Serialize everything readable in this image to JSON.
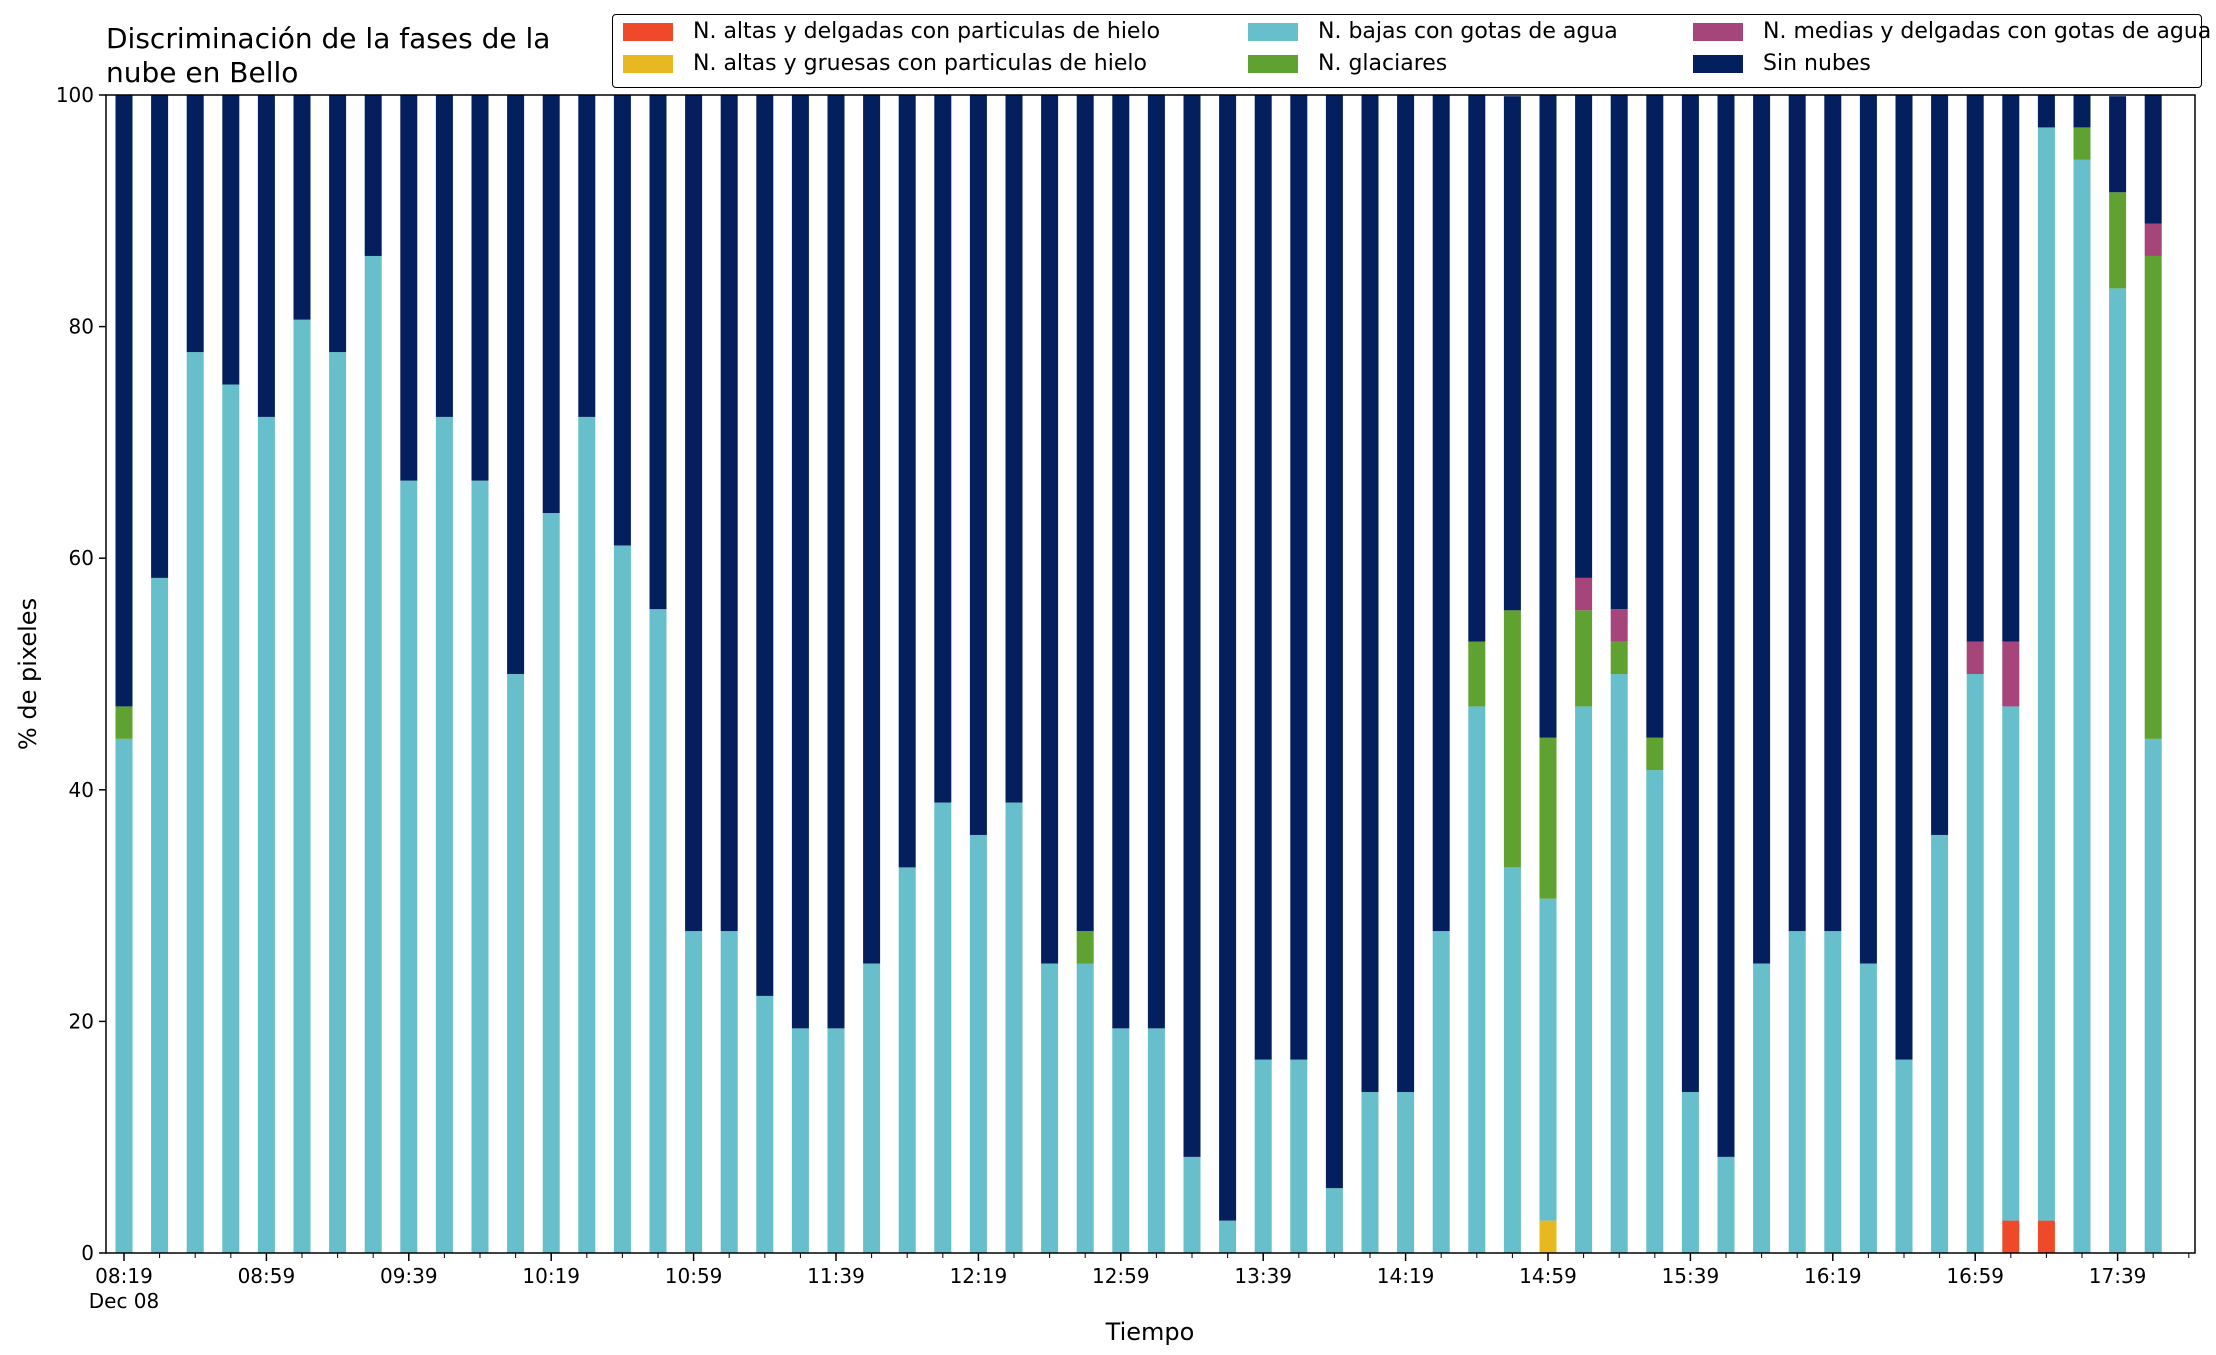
{
  "chart_data": {
    "type": "bar",
    "stacked": true,
    "title": "Discriminación de la fases de la\nnube en Bello",
    "xlabel": "Tiempo",
    "ylabel": "% de pixeles",
    "ylim": [
      0,
      100
    ],
    "yticks": [
      0,
      20,
      40,
      60,
      80,
      100
    ],
    "grid": false,
    "legend_position": "top-right",
    "first_tick_sublabel": "Dec 08",
    "x_tick_labels": [
      {
        "index": 0,
        "label": "08:19"
      },
      {
        "index": 4,
        "label": "08:59"
      },
      {
        "index": 8,
        "label": "09:39"
      },
      {
        "index": 12,
        "label": "10:19"
      },
      {
        "index": 16,
        "label": "10:59"
      },
      {
        "index": 20,
        "label": "11:39"
      },
      {
        "index": 24,
        "label": "12:19"
      },
      {
        "index": 28,
        "label": "12:59"
      },
      {
        "index": 32,
        "label": "13:39"
      },
      {
        "index": 36,
        "label": "14:19"
      },
      {
        "index": 40,
        "label": "14:59"
      },
      {
        "index": 44,
        "label": "15:39"
      },
      {
        "index": 48,
        "label": "16:19"
      },
      {
        "index": 52,
        "label": "16:59"
      },
      {
        "index": 56,
        "label": "17:39"
      }
    ],
    "categories": [
      "08:19",
      "08:29",
      "08:39",
      "08:49",
      "08:59",
      "09:09",
      "09:19",
      "09:29",
      "09:39",
      "09:49",
      "09:59",
      "10:09",
      "10:19",
      "10:29",
      "10:39",
      "10:49",
      "10:59",
      "11:09",
      "11:19",
      "11:29",
      "11:39",
      "11:49",
      "11:59",
      "12:09",
      "12:19",
      "12:29",
      "12:39",
      "12:49",
      "12:59",
      "13:09",
      "13:19",
      "13:29",
      "13:39",
      "13:49",
      "13:59",
      "14:09",
      "14:19",
      "14:29",
      "14:39",
      "14:49",
      "14:59",
      "15:09",
      "15:19",
      "15:29",
      "15:39",
      "15:49",
      "15:59",
      "16:09",
      "16:19",
      "16:29",
      "16:39",
      "16:49",
      "16:59",
      "17:09",
      "17:19",
      "17:29",
      "17:39",
      "17:49"
    ],
    "series": [
      {
        "name": "N. altas y delgadas con particulas de hielo",
        "color": "#ee4a2a",
        "values": [
          0,
          0,
          0,
          0,
          0,
          0,
          0,
          0,
          0,
          0,
          0,
          0,
          0,
          0,
          0,
          0,
          0,
          0,
          0,
          0,
          0,
          0,
          0,
          0,
          0,
          0,
          0,
          0,
          0,
          0,
          0,
          0,
          0,
          0,
          0,
          0,
          0,
          0,
          0,
          0,
          0,
          0,
          0,
          0,
          0,
          0,
          0,
          0,
          0,
          0,
          0,
          0,
          0,
          2.8,
          2.8,
          0,
          0,
          0
        ]
      },
      {
        "name": "N. altas y gruesas con particulas de hielo",
        "color": "#e8b820",
        "values": [
          0,
          0,
          0,
          0,
          0,
          0,
          0,
          0,
          0,
          0,
          0,
          0,
          0,
          0,
          0,
          0,
          0,
          0,
          0,
          0,
          0,
          0,
          0,
          0,
          0,
          0,
          0,
          0,
          0,
          0,
          0,
          0,
          0,
          0,
          0,
          0,
          0,
          0,
          0,
          0,
          2.8,
          0,
          0,
          0,
          0,
          0,
          0,
          0,
          0,
          0,
          0,
          0,
          0,
          0,
          0,
          0,
          0,
          0
        ]
      },
      {
        "name": "N. bajas con gotas de agua",
        "color": "#66bfca",
        "values": [
          44.4,
          58.3,
          77.8,
          75.0,
          72.2,
          80.6,
          77.8,
          86.1,
          66.7,
          72.2,
          66.7,
          50.0,
          63.9,
          72.2,
          61.1,
          55.6,
          27.8,
          27.8,
          22.2,
          19.4,
          19.4,
          25.0,
          33.3,
          38.9,
          36.1,
          38.9,
          25.0,
          25.0,
          19.4,
          19.4,
          8.3,
          2.8,
          16.7,
          16.7,
          5.6,
          13.9,
          13.9,
          27.8,
          47.2,
          33.3,
          27.8,
          47.2,
          50.0,
          41.7,
          13.9,
          8.3,
          25.0,
          27.8,
          27.8,
          25.0,
          16.7,
          36.1,
          50.0,
          44.4,
          94.4,
          94.4,
          83.3,
          44.4
        ]
      },
      {
        "name": "N. glaciares",
        "color": "#60a231",
        "values": [
          2.8,
          0,
          0,
          0,
          0,
          0,
          0,
          0,
          0,
          0,
          0,
          0,
          0,
          0,
          0,
          0,
          0,
          0,
          0,
          0,
          0,
          0,
          0,
          0,
          0,
          0,
          0,
          2.8,
          0,
          0,
          0,
          0,
          0,
          0,
          0,
          0,
          0,
          0,
          5.6,
          22.2,
          13.9,
          8.3,
          2.8,
          2.8,
          0,
          0,
          0,
          0,
          0,
          0,
          0,
          0,
          0,
          0,
          0,
          2.8,
          8.3,
          41.7
        ]
      },
      {
        "name": "N. medias y delgadas con gotas de agua",
        "color": "#a5457a",
        "values": [
          0,
          0,
          0,
          0,
          0,
          0,
          0,
          0,
          0,
          0,
          0,
          0,
          0,
          0,
          0,
          0,
          0,
          0,
          0,
          0,
          0,
          0,
          0,
          0,
          0,
          0,
          0,
          0,
          0,
          0,
          0,
          0,
          0,
          0,
          0,
          0,
          0,
          0,
          0,
          0,
          0,
          2.8,
          2.8,
          0,
          0,
          0,
          0,
          0,
          0,
          0,
          0,
          0,
          2.8,
          5.6,
          0,
          0,
          0,
          2.8
        ]
      },
      {
        "name": "Sin nubes",
        "color": "#041f5e",
        "values": [
          52.8,
          41.7,
          22.2,
          25.0,
          27.8,
          19.4,
          22.2,
          13.9,
          33.3,
          27.8,
          33.3,
          50.0,
          36.1,
          27.8,
          38.9,
          44.4,
          72.2,
          72.2,
          77.8,
          80.6,
          80.6,
          75.0,
          66.7,
          61.1,
          63.9,
          61.1,
          75.0,
          72.2,
          80.6,
          80.6,
          91.7,
          97.2,
          83.3,
          83.3,
          94.4,
          86.1,
          86.1,
          72.2,
          47.2,
          44.4,
          55.6,
          41.7,
          44.4,
          55.6,
          86.1,
          91.7,
          75.0,
          72.2,
          72.2,
          75.0,
          83.3,
          63.9,
          47.2,
          47.2,
          2.8,
          2.8,
          8.3,
          11.1
        ]
      }
    ]
  }
}
